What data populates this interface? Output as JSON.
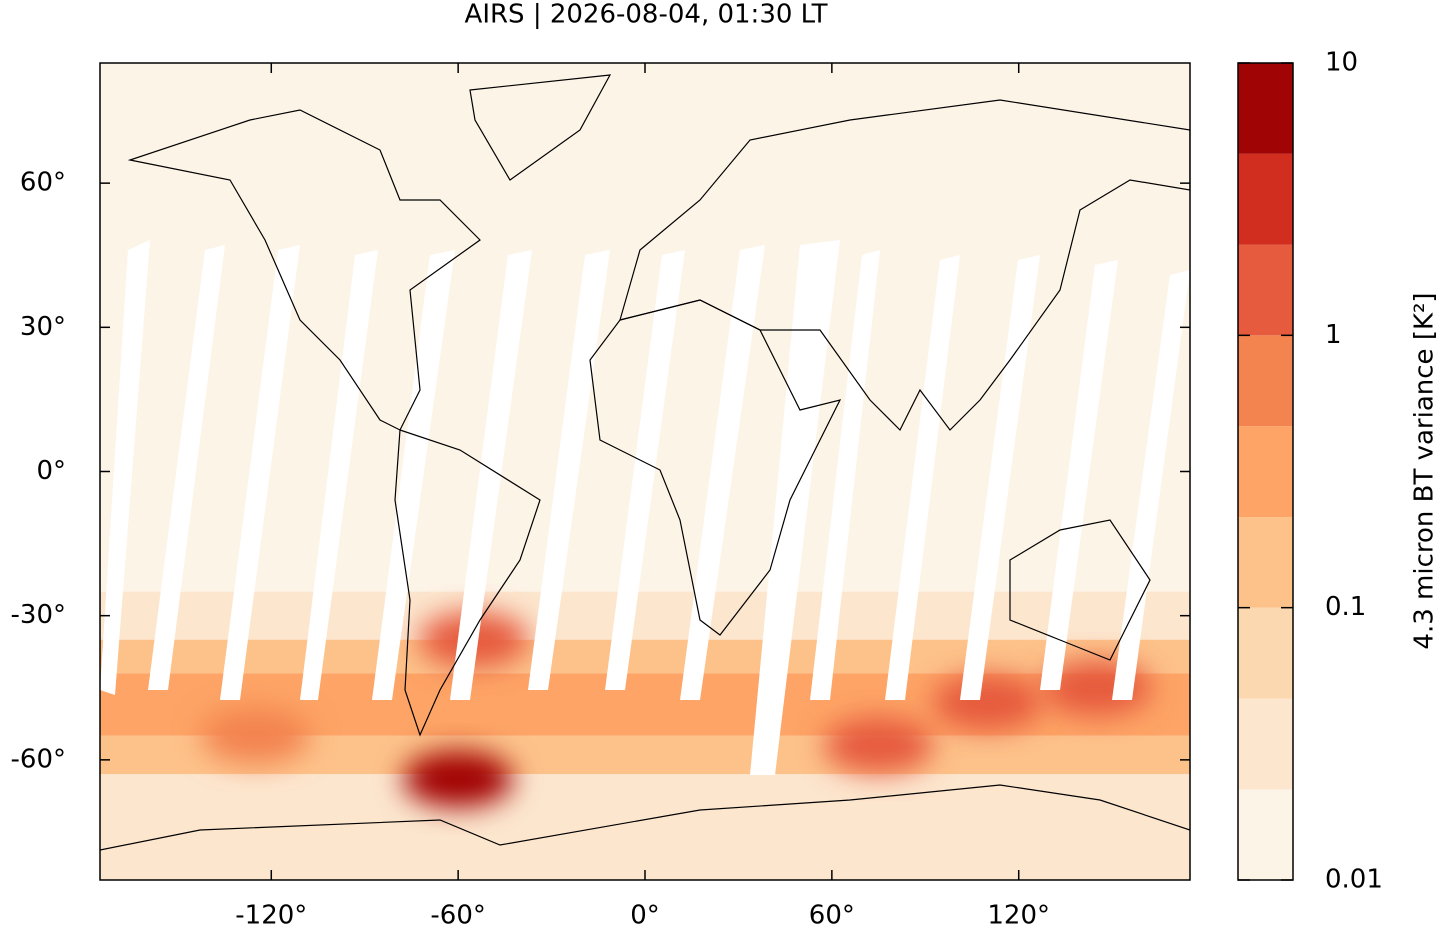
{
  "chart_data": {
    "type": "map",
    "title": "AIRS | 2026-08-04, 01:30 LT",
    "xlim": [
      -175,
      175
    ],
    "ylim": [
      -85,
      85
    ],
    "xticks": [
      {
        "value": -120,
        "label": "-120°"
      },
      {
        "value": -60,
        "label": "-60°"
      },
      {
        "value": 0,
        "label": "0°"
      },
      {
        "value": 60,
        "label": "60°"
      },
      {
        "value": 120,
        "label": "120°"
      }
    ],
    "yticks": [
      {
        "value": -60,
        "label": "-60°"
      },
      {
        "value": -30,
        "label": "-30°"
      },
      {
        "value": 0,
        "label": "0°"
      },
      {
        "value": 30,
        "label": "30°"
      },
      {
        "value": 60,
        "label": "60°"
      }
    ],
    "field": {
      "lat_edges": [
        85,
        -25,
        -35,
        -42,
        -55,
        -63,
        -72,
        -85
      ],
      "values": [
        0.012,
        0.03,
        0.1,
        0.3,
        0.15,
        0.04,
        0.03
      ]
    },
    "hotspots": [
      {
        "lon": -60,
        "lat": -64,
        "value": 5
      },
      {
        "lon": 75,
        "lat": -57,
        "value": 1.5
      },
      {
        "lon": 110,
        "lat": -48,
        "value": 1.5
      },
      {
        "lon": -55,
        "lat": -35,
        "value": 1
      },
      {
        "lon": -125,
        "lat": -55,
        "value": 0.8
      },
      {
        "lon": 145,
        "lat": -45,
        "value": 2
      }
    ],
    "colorbar": {
      "label": "4.3 micron BT variance [K²]",
      "log": true,
      "levels": [
        0.01,
        0.0215,
        0.0464,
        0.1,
        0.215,
        0.464,
        1,
        2.15,
        4.64,
        10
      ],
      "colors": [
        "#fdf4e8",
        "#fce6ce",
        "#fcd8b0",
        "#fdc28a",
        "#fda466",
        "#f3834f",
        "#e65a3d",
        "#d22e1f",
        "#a10404"
      ],
      "ticks": [
        0.01,
        0.1,
        1,
        10
      ]
    }
  }
}
